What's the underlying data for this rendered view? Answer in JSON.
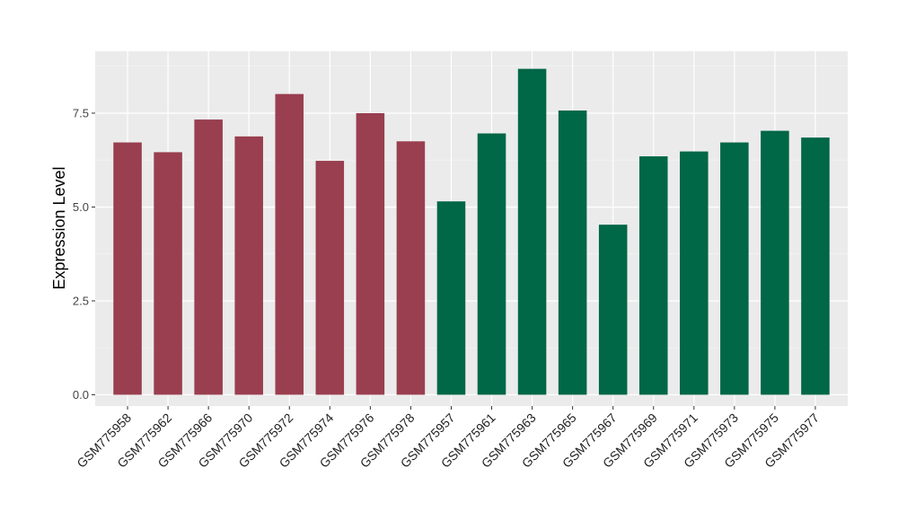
{
  "chart_data": {
    "type": "bar",
    "ylabel": "Expression Level",
    "xlabel": "",
    "ylim": [
      -0.3,
      9.15
    ],
    "yticks": [
      0.0,
      2.5,
      5.0,
      7.5
    ],
    "ytick_labels": [
      "0.0",
      "2.5",
      "5.0",
      "7.5"
    ],
    "grid": true,
    "panel_background": "#ebebeb",
    "categories": [
      "GSM775958",
      "GSM775962",
      "GSM775966",
      "GSM775970",
      "GSM775972",
      "GSM775974",
      "GSM775976",
      "GSM775978",
      "GSM775957",
      "GSM775961",
      "GSM775963",
      "GSM775965",
      "GSM775967",
      "GSM775969",
      "GSM775971",
      "GSM775973",
      "GSM775975",
      "GSM775977"
    ],
    "values": [
      6.72,
      6.46,
      7.33,
      6.88,
      8.01,
      6.23,
      7.5,
      6.75,
      5.15,
      6.96,
      8.68,
      7.57,
      4.53,
      6.35,
      6.48,
      6.72,
      7.03,
      6.85
    ],
    "bar_colors": [
      "#993f4f",
      "#993f4f",
      "#993f4f",
      "#993f4f",
      "#993f4f",
      "#993f4f",
      "#993f4f",
      "#993f4f",
      "#006747",
      "#006747",
      "#006747",
      "#006747",
      "#006747",
      "#006747",
      "#006747",
      "#006747",
      "#006747",
      "#006747"
    ]
  }
}
